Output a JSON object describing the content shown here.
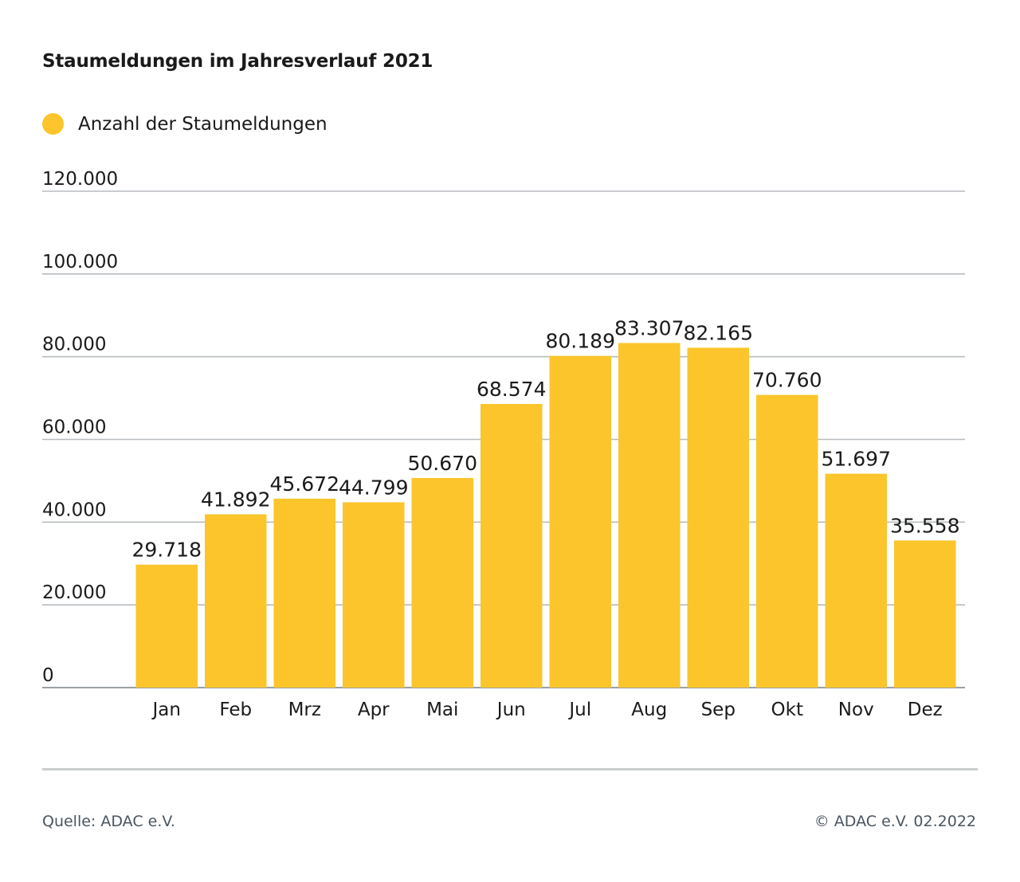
{
  "chart_data": {
    "type": "bar",
    "title": "Staumeldungen im Jahresverlauf 2021",
    "legend": [
      {
        "label": "Anzahl der Staumeldungen",
        "color": "#fbc52b"
      }
    ],
    "categories": [
      "Jan",
      "Feb",
      "Mrz",
      "Apr",
      "Mai",
      "Jun",
      "Jul",
      "Aug",
      "Sep",
      "Okt",
      "Nov",
      "Dez"
    ],
    "series": [
      {
        "name": "Anzahl der Staumeldungen",
        "values": [
          29718,
          41892,
          45672,
          44799,
          50670,
          68574,
          80189,
          83307,
          82165,
          70760,
          51697,
          35558
        ],
        "value_labels": [
          "29.718",
          "41.892",
          "45.672",
          "44.799",
          "50.670",
          "68.574",
          "80.189",
          "83.307",
          "82.165",
          "70.760",
          "51.697",
          "35.558"
        ],
        "color": "#fbc52b"
      }
    ],
    "ylim": [
      0,
      120000
    ],
    "yticks": [
      0,
      20000,
      40000,
      60000,
      80000,
      100000,
      120000
    ],
    "ytick_labels": [
      "0",
      "20.000",
      "40.000",
      "60.000",
      "80.000",
      "100.000",
      "120.000"
    ],
    "grid": true,
    "legend_position": "top-left",
    "xlabel": "",
    "ylabel": ""
  },
  "footer": {
    "source": "Quelle: ADAC e.V.",
    "copyright": "© ADAC e.V. 02.2022"
  },
  "colors": {
    "bar": "#fbc52b",
    "grid": "#b7bcbf",
    "text": "#1a1a1a",
    "footer_text": "#4a5560",
    "rule": "#c9cfcc"
  }
}
